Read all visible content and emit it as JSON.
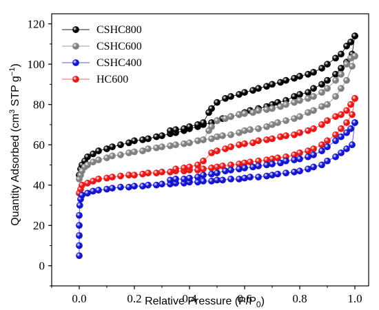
{
  "chart_data": {
    "type": "scatter",
    "xlabel": "Relative Pressure (P/P0)",
    "ylabel": "Quantity Adsorbed (cm3 STP g-1)",
    "xlim": [
      -0.1,
      1.05
    ],
    "ylim": [
      -10,
      125
    ],
    "xticks": [
      0.0,
      0.2,
      0.4,
      0.6,
      0.8,
      1.0
    ],
    "xtick_labels": [
      "0.0",
      "0.2",
      "0.4",
      "0.6",
      "0.8",
      "1.0"
    ],
    "yticks": [
      0,
      20,
      40,
      60,
      80,
      100,
      120
    ],
    "ytick_labels": [
      "0",
      "20",
      "40",
      "60",
      "80",
      "100",
      "120"
    ],
    "grid": false,
    "legend_position": "top-left",
    "series": [
      {
        "name": "CSHC800",
        "color": "#000000",
        "line_color": "#222222",
        "adsorption": [
          [
            0.0,
            45
          ],
          [
            0.005,
            48
          ],
          [
            0.01,
            50
          ],
          [
            0.02,
            52
          ],
          [
            0.03,
            54
          ],
          [
            0.05,
            55.5
          ],
          [
            0.07,
            57
          ],
          [
            0.1,
            58
          ],
          [
            0.12,
            59
          ],
          [
            0.15,
            60
          ],
          [
            0.18,
            61
          ],
          [
            0.2,
            62
          ],
          [
            0.23,
            62.5
          ],
          [
            0.25,
            63
          ],
          [
            0.28,
            64
          ],
          [
            0.3,
            64.5
          ],
          [
            0.33,
            65.5
          ],
          [
            0.35,
            66
          ],
          [
            0.38,
            67
          ],
          [
            0.4,
            68
          ],
          [
            0.43,
            69
          ],
          [
            0.45,
            70
          ],
          [
            0.48,
            71
          ],
          [
            0.5,
            72
          ],
          [
            0.52,
            73
          ],
          [
            0.55,
            74
          ],
          [
            0.58,
            75
          ],
          [
            0.6,
            76
          ],
          [
            0.62,
            77
          ],
          [
            0.65,
            78
          ],
          [
            0.68,
            79
          ],
          [
            0.7,
            80
          ],
          [
            0.72,
            81
          ],
          [
            0.75,
            82
          ],
          [
            0.78,
            84
          ],
          [
            0.8,
            85
          ],
          [
            0.83,
            86
          ],
          [
            0.85,
            88
          ],
          [
            0.88,
            90
          ],
          [
            0.9,
            92
          ],
          [
            0.93,
            95
          ],
          [
            0.95,
            98
          ],
          [
            0.97,
            101
          ],
          [
            0.99,
            105
          ],
          [
            1.0,
            114
          ]
        ],
        "desorption": [
          [
            1.0,
            114
          ],
          [
            0.985,
            111
          ],
          [
            0.97,
            109
          ],
          [
            0.95,
            105
          ],
          [
            0.93,
            103
          ],
          [
            0.9,
            100
          ],
          [
            0.88,
            98
          ],
          [
            0.85,
            96
          ],
          [
            0.83,
            95
          ],
          [
            0.8,
            94
          ],
          [
            0.78,
            93
          ],
          [
            0.75,
            92
          ],
          [
            0.73,
            91
          ],
          [
            0.7,
            90
          ],
          [
            0.68,
            89
          ],
          [
            0.65,
            88
          ],
          [
            0.63,
            87
          ],
          [
            0.6,
            86
          ],
          [
            0.58,
            85
          ],
          [
            0.55,
            84
          ],
          [
            0.53,
            83
          ],
          [
            0.5,
            81
          ],
          [
            0.48,
            78
          ],
          [
            0.47,
            76
          ],
          [
            0.45,
            71
          ],
          [
            0.43,
            70
          ],
          [
            0.4,
            69
          ],
          [
            0.38,
            68
          ],
          [
            0.35,
            67.5
          ],
          [
            0.33,
            67
          ]
        ]
      },
      {
        "name": "CSHC600",
        "color": "#808080",
        "line_color": "#9a9a9a",
        "adsorption": [
          [
            0.0,
            43
          ],
          [
            0.005,
            45
          ],
          [
            0.01,
            47
          ],
          [
            0.02,
            49
          ],
          [
            0.03,
            50
          ],
          [
            0.05,
            51.5
          ],
          [
            0.07,
            52.5
          ],
          [
            0.1,
            53.5
          ],
          [
            0.12,
            54.5
          ],
          [
            0.15,
            55
          ],
          [
            0.18,
            56
          ],
          [
            0.2,
            56.5
          ],
          [
            0.23,
            57
          ],
          [
            0.25,
            58
          ],
          [
            0.28,
            58.5
          ],
          [
            0.3,
            59
          ],
          [
            0.33,
            59.5
          ],
          [
            0.35,
            60
          ],
          [
            0.38,
            60.5
          ],
          [
            0.4,
            61
          ],
          [
            0.43,
            62
          ],
          [
            0.45,
            62.5
          ],
          [
            0.48,
            63
          ],
          [
            0.5,
            64
          ],
          [
            0.52,
            64.5
          ],
          [
            0.55,
            65
          ],
          [
            0.58,
            66
          ],
          [
            0.6,
            67
          ],
          [
            0.62,
            67.5
          ],
          [
            0.65,
            68
          ],
          [
            0.68,
            69
          ],
          [
            0.7,
            70
          ],
          [
            0.72,
            71
          ],
          [
            0.75,
            72
          ],
          [
            0.78,
            73
          ],
          [
            0.8,
            74
          ],
          [
            0.83,
            76
          ],
          [
            0.85,
            77
          ],
          [
            0.88,
            79
          ],
          [
            0.9,
            80
          ],
          [
            0.93,
            84
          ],
          [
            0.95,
            88
          ],
          [
            0.97,
            92
          ],
          [
            0.99,
            99
          ],
          [
            1.0,
            104
          ]
        ],
        "desorption": [
          [
            1.0,
            104
          ],
          [
            0.985,
            103
          ],
          [
            0.97,
            100
          ],
          [
            0.95,
            95
          ],
          [
            0.93,
            92
          ],
          [
            0.9,
            88
          ],
          [
            0.88,
            86
          ],
          [
            0.85,
            84
          ],
          [
            0.83,
            83
          ],
          [
            0.8,
            82
          ],
          [
            0.78,
            81
          ],
          [
            0.75,
            80
          ],
          [
            0.73,
            79
          ],
          [
            0.7,
            78
          ],
          [
            0.68,
            77.5
          ],
          [
            0.65,
            77
          ],
          [
            0.63,
            76
          ],
          [
            0.6,
            75.5
          ],
          [
            0.58,
            75
          ],
          [
            0.55,
            74
          ],
          [
            0.53,
            73
          ],
          [
            0.5,
            72
          ],
          [
            0.48,
            69
          ],
          [
            0.47,
            67
          ],
          [
            0.45,
            62.5
          ]
        ]
      },
      {
        "name": "CSHC400",
        "color": "#1515d0",
        "line_color": "#5a5ad8",
        "adsorption": [
          [
            0.0,
            5
          ],
          [
            0.0,
            10
          ],
          [
            0.0,
            15
          ],
          [
            0.0,
            20
          ],
          [
            0.0,
            25
          ],
          [
            0.002,
            30
          ],
          [
            0.005,
            33
          ],
          [
            0.01,
            35
          ],
          [
            0.03,
            36
          ],
          [
            0.05,
            37
          ],
          [
            0.07,
            37.5
          ],
          [
            0.1,
            38
          ],
          [
            0.12,
            38.5
          ],
          [
            0.15,
            39
          ],
          [
            0.18,
            39
          ],
          [
            0.2,
            39.5
          ],
          [
            0.23,
            39.5
          ],
          [
            0.25,
            40
          ],
          [
            0.28,
            40
          ],
          [
            0.3,
            40.5
          ],
          [
            0.33,
            40.5
          ],
          [
            0.35,
            41
          ],
          [
            0.38,
            41
          ],
          [
            0.4,
            41.5
          ],
          [
            0.43,
            41.5
          ],
          [
            0.45,
            42
          ],
          [
            0.48,
            42
          ],
          [
            0.5,
            42.5
          ],
          [
            0.52,
            42.5
          ],
          [
            0.55,
            43
          ],
          [
            0.58,
            43
          ],
          [
            0.6,
            43.5
          ],
          [
            0.62,
            44
          ],
          [
            0.65,
            44
          ],
          [
            0.68,
            44.5
          ],
          [
            0.7,
            45
          ],
          [
            0.72,
            45.5
          ],
          [
            0.75,
            46
          ],
          [
            0.78,
            46.5
          ],
          [
            0.8,
            47
          ],
          [
            0.83,
            48
          ],
          [
            0.85,
            49
          ],
          [
            0.88,
            50
          ],
          [
            0.9,
            52
          ],
          [
            0.93,
            54
          ],
          [
            0.95,
            56
          ],
          [
            0.97,
            58
          ],
          [
            0.99,
            60
          ],
          [
            1.0,
            71
          ]
        ],
        "desorption": [
          [
            1.0,
            71
          ],
          [
            0.985,
            68
          ],
          [
            0.97,
            66
          ],
          [
            0.95,
            64
          ],
          [
            0.93,
            62
          ],
          [
            0.9,
            59
          ],
          [
            0.88,
            57
          ],
          [
            0.85,
            55
          ],
          [
            0.83,
            54
          ],
          [
            0.8,
            53
          ],
          [
            0.78,
            52.5
          ],
          [
            0.75,
            52
          ],
          [
            0.73,
            51
          ],
          [
            0.7,
            50.5
          ],
          [
            0.68,
            50
          ],
          [
            0.65,
            49.5
          ],
          [
            0.63,
            49
          ],
          [
            0.6,
            48.5
          ],
          [
            0.58,
            48
          ],
          [
            0.55,
            47.5
          ],
          [
            0.53,
            47
          ],
          [
            0.5,
            46
          ],
          [
            0.48,
            45.5
          ],
          [
            0.45,
            45
          ],
          [
            0.43,
            44
          ],
          [
            0.4,
            43.5
          ],
          [
            0.38,
            43
          ],
          [
            0.35,
            43
          ],
          [
            0.33,
            42.5
          ]
        ]
      },
      {
        "name": "HC600",
        "color": "#e81818",
        "line_color": "#f06060",
        "adsorption": [
          [
            0.0,
            36
          ],
          [
            0.005,
            38
          ],
          [
            0.01,
            40
          ],
          [
            0.03,
            41
          ],
          [
            0.05,
            42
          ],
          [
            0.07,
            43
          ],
          [
            0.1,
            43.5
          ],
          [
            0.12,
            44
          ],
          [
            0.15,
            44.5
          ],
          [
            0.18,
            45
          ],
          [
            0.2,
            45
          ],
          [
            0.23,
            45.5
          ],
          [
            0.25,
            46
          ],
          [
            0.28,
            46
          ],
          [
            0.3,
            46.5
          ],
          [
            0.33,
            46.5
          ],
          [
            0.35,
            47
          ],
          [
            0.38,
            47
          ],
          [
            0.4,
            47.5
          ],
          [
            0.43,
            47.5
          ],
          [
            0.45,
            48
          ],
          [
            0.48,
            48.5
          ],
          [
            0.5,
            49
          ],
          [
            0.52,
            49.5
          ],
          [
            0.55,
            50
          ],
          [
            0.58,
            50.5
          ],
          [
            0.6,
            51
          ],
          [
            0.62,
            51.5
          ],
          [
            0.65,
            52
          ],
          [
            0.68,
            52.5
          ],
          [
            0.7,
            53
          ],
          [
            0.72,
            53.5
          ],
          [
            0.75,
            54
          ],
          [
            0.78,
            55
          ],
          [
            0.8,
            56
          ],
          [
            0.83,
            57
          ],
          [
            0.85,
            58
          ],
          [
            0.88,
            60
          ],
          [
            0.9,
            62
          ],
          [
            0.93,
            65
          ],
          [
            0.95,
            68
          ],
          [
            0.97,
            71
          ],
          [
            0.99,
            75
          ],
          [
            1.0,
            83
          ]
        ],
        "desorption": [
          [
            1.0,
            83
          ],
          [
            0.985,
            80
          ],
          [
            0.97,
            77
          ],
          [
            0.95,
            75
          ],
          [
            0.93,
            74
          ],
          [
            0.9,
            72
          ],
          [
            0.88,
            70
          ],
          [
            0.85,
            68
          ],
          [
            0.83,
            67
          ],
          [
            0.8,
            66
          ],
          [
            0.78,
            65
          ],
          [
            0.75,
            64.5
          ],
          [
            0.73,
            64
          ],
          [
            0.7,
            63
          ],
          [
            0.68,
            62.5
          ],
          [
            0.65,
            62
          ],
          [
            0.63,
            61
          ],
          [
            0.6,
            60.5
          ],
          [
            0.58,
            60
          ],
          [
            0.55,
            59
          ],
          [
            0.53,
            58
          ],
          [
            0.5,
            57
          ],
          [
            0.48,
            56
          ],
          [
            0.45,
            52
          ],
          [
            0.43,
            50
          ],
          [
            0.4,
            49
          ],
          [
            0.38,
            48.5
          ],
          [
            0.35,
            48
          ]
        ]
      }
    ]
  }
}
